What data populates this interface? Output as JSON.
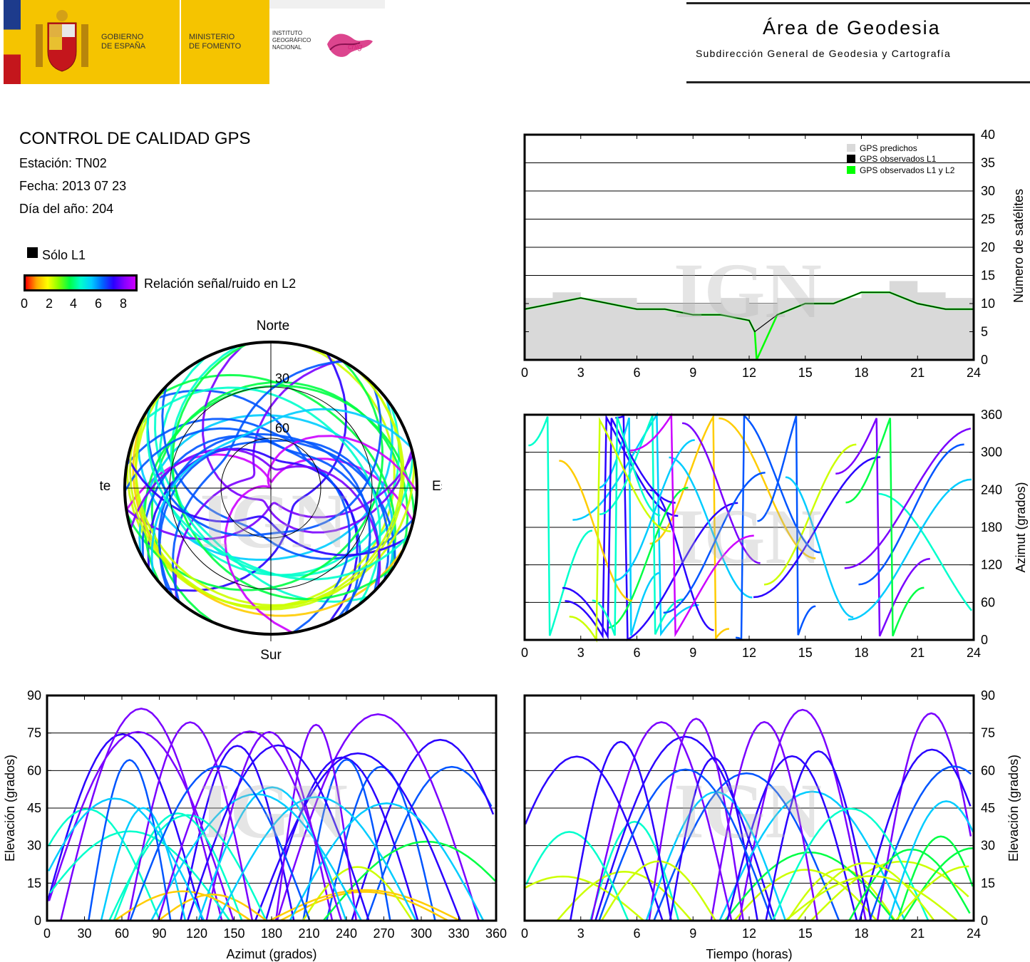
{
  "header": {
    "gov_label": "GOBIERNO\nDE ESPAÑA",
    "ministry_label": "MINISTERIO\nDE FOMENTO",
    "ign_label": "INSTITUTO\nGEOGRÁFICO\nNACIONAL",
    "cnig_label": "cnig",
    "area_title": "Área de Geodesia",
    "area_subtitle": "Subdirección General de Geodesia y Cartografía"
  },
  "info": {
    "title": "CONTROL DE CALIDAD GPS",
    "station": "Estación: TN02",
    "date": "Fecha: 2013 07 23",
    "doy": "Día del año: 204",
    "legend_l1": "Sólo L1",
    "legend_snr": "Relación señal/ruido en L2",
    "snr_ticks": [
      "0",
      "2",
      "4",
      "6",
      "8"
    ],
    "colors": {
      "l1_only": "#000000",
      "predicted": "#d9d9d9",
      "observed_l1": "#000000",
      "observed_l1l2": "#00ff00"
    }
  },
  "watermark": "IGN",
  "chart_data": [
    {
      "type": "line",
      "id": "sat-count",
      "ylabel": "Número de satélites",
      "xlim": [
        0,
        24
      ],
      "ylim": [
        0,
        40
      ],
      "xticks": [
        "0",
        "3",
        "6",
        "9",
        "12",
        "15",
        "18",
        "21",
        "24"
      ],
      "yticks": [
        "0",
        "5",
        "10",
        "15",
        "20",
        "25",
        "30",
        "35",
        "40"
      ],
      "legend_position": "top-right",
      "grid": true,
      "series": [
        {
          "name": "GPS predichos",
          "x": [
            0,
            1.5,
            3,
            4.5,
            6,
            7.5,
            9,
            10.5,
            12,
            13.5,
            15,
            16.5,
            18,
            19.5,
            21,
            22.5,
            24
          ],
          "y": [
            11,
            12,
            11,
            11,
            10,
            10,
            10,
            11,
            10,
            11,
            11,
            11,
            12,
            14,
            12,
            11,
            10
          ]
        },
        {
          "name": "GPS observados L1",
          "x": [
            0,
            1.5,
            3,
            4.5,
            6,
            7.5,
            9,
            10.5,
            12,
            12.3,
            13.5,
            15,
            16.5,
            18,
            19.5,
            21,
            22.5,
            24
          ],
          "y": [
            9,
            10,
            11,
            10,
            9,
            9,
            8,
            8,
            7,
            5,
            8,
            10,
            10,
            12,
            12,
            10,
            9,
            9
          ]
        },
        {
          "name": "GPS observados L1 y L2",
          "x": [
            0,
            1.5,
            3,
            4.5,
            6,
            7.5,
            9,
            10.5,
            12,
            12.3,
            12.4,
            13.5,
            15,
            16.5,
            18,
            19.5,
            21,
            22.5,
            24
          ],
          "y": [
            9,
            10,
            11,
            10,
            9,
            9,
            8,
            8,
            7,
            5,
            0,
            8,
            10,
            10,
            12,
            12,
            10,
            9,
            9
          ]
        }
      ]
    },
    {
      "type": "scatter",
      "id": "skyplot",
      "labels": {
        "north": "Norte",
        "south": "Sur",
        "east": "Este",
        "west": "Oeste"
      },
      "rings": [
        "30",
        "60"
      ]
    },
    {
      "type": "scatter",
      "id": "azimuth-time",
      "ylabel": "Azimut (grados)",
      "xlim": [
        0,
        24
      ],
      "ylim": [
        0,
        360
      ],
      "xticks": [
        "0",
        "3",
        "6",
        "9",
        "12",
        "15",
        "18",
        "21",
        "24"
      ],
      "yticks": [
        "0",
        "60",
        "120",
        "180",
        "240",
        "300",
        "360"
      ],
      "grid": true
    },
    {
      "type": "scatter",
      "id": "elev-azimuth",
      "xlabel": "Azimut (grados)",
      "ylabel": "Elevación (grados)",
      "xlim": [
        0,
        360
      ],
      "ylim": [
        0,
        90
      ],
      "xticks": [
        "0",
        "30",
        "60",
        "90",
        "120",
        "150",
        "180",
        "210",
        "240",
        "270",
        "300",
        "330",
        "360"
      ],
      "yticks": [
        "0",
        "15",
        "30",
        "45",
        "60",
        "75",
        "90"
      ],
      "grid": true
    },
    {
      "type": "scatter",
      "id": "elev-time",
      "xlabel": "Tiempo (horas)",
      "ylabel": "Elevación (grados)",
      "xlim": [
        0,
        24
      ],
      "ylim": [
        0,
        90
      ],
      "xticks": [
        "0",
        "3",
        "6",
        "9",
        "12",
        "15",
        "18",
        "21",
        "24"
      ],
      "yticks": [
        "0",
        "15",
        "30",
        "45",
        "60",
        "75",
        "90"
      ],
      "grid": true
    }
  ]
}
